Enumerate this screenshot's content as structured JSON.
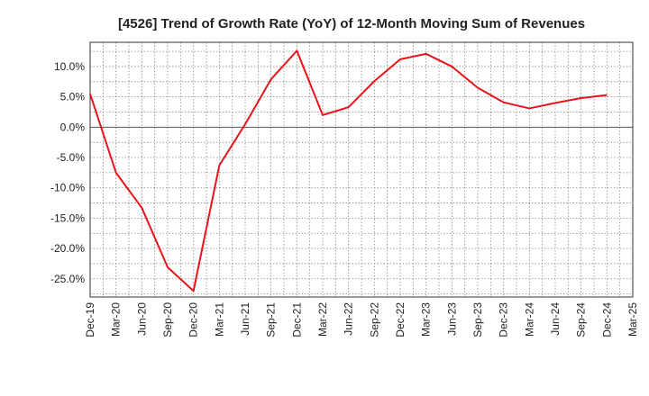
{
  "chart_data": {
    "type": "line",
    "title": "[4526]  Trend of Growth Rate (YoY) of 12-Month Moving Sum of Revenues",
    "xlabel": "",
    "ylabel": "",
    "x_ticks": [
      "Dec-19",
      "Mar-20",
      "Jun-20",
      "Sep-20",
      "Dec-20",
      "Mar-21",
      "Jun-21",
      "Sep-21",
      "Dec-21",
      "Mar-22",
      "Jun-22",
      "Sep-22",
      "Dec-22",
      "Mar-23",
      "Jun-23",
      "Sep-23",
      "Dec-23",
      "Mar-24",
      "Jun-24",
      "Sep-24",
      "Dec-24",
      "Mar-25"
    ],
    "y_ticks": [
      "10.0%",
      "5.0%",
      "0.0%",
      "-5.0%",
      "-10.0%",
      "-15.0%",
      "-20.0%",
      "-25.0%"
    ],
    "y_tick_values": [
      10,
      5,
      0,
      -5,
      -10,
      -15,
      -20,
      -25
    ],
    "ylim": [
      -28.0,
      14.0
    ],
    "grid": true,
    "zero_line": true,
    "series": [
      {
        "color": "#e8141c",
        "x": [
          "Dec-19",
          "Mar-20",
          "Jun-20",
          "Sep-20",
          "Dec-20",
          "Mar-21",
          "Jun-21",
          "Sep-21",
          "Dec-21",
          "Mar-22",
          "Jun-22",
          "Sep-22",
          "Dec-22",
          "Mar-23",
          "Jun-23",
          "Sep-23",
          "Dec-23",
          "Mar-24",
          "Jun-24",
          "Sep-24",
          "Dec-24"
        ],
        "values": [
          5.5,
          -7.5,
          -13.3,
          -23.1,
          -27.0,
          -6.3,
          0.5,
          7.9,
          12.6,
          2.0,
          3.3,
          7.6,
          11.2,
          12.1,
          10.0,
          6.5,
          4.1,
          3.1,
          4.0,
          4.8,
          5.3
        ]
      }
    ]
  }
}
